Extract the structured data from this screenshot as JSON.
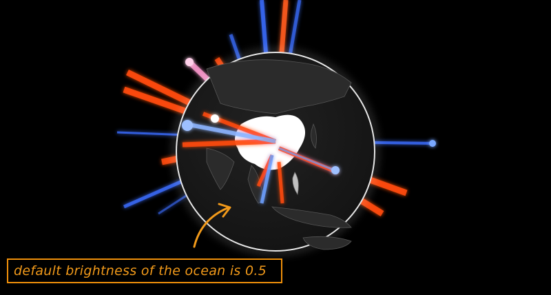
{
  "annotation": {
    "text": "default brightness of the ocean is 0.5",
    "color": "#f29a1a",
    "border_color": "#f0900a"
  },
  "globe": {
    "ocean_color": "#1c1c1c",
    "rim_color": "#ffffff",
    "land_color": "#2b2b2b",
    "highlight_color": "#ffffff"
  },
  "colors": {
    "export_beam": "#ff4a12",
    "import_beam": "#2f6dff"
  }
}
